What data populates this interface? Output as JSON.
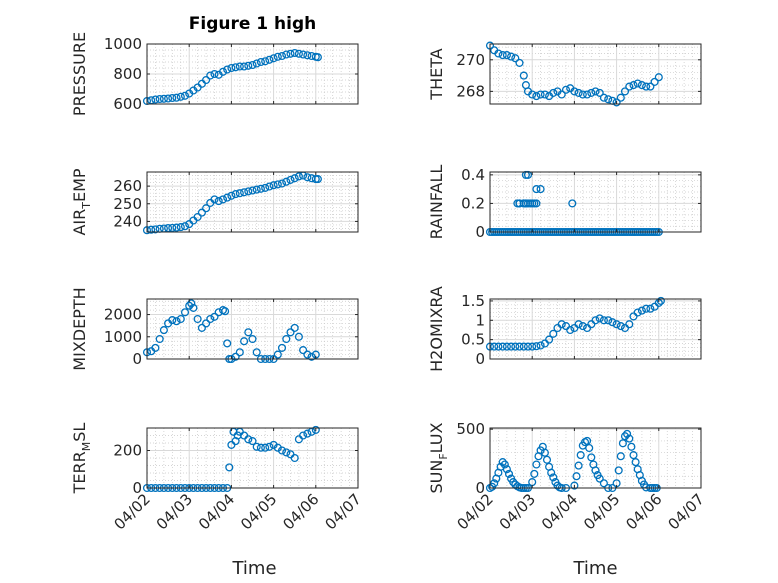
{
  "figure": {
    "title": "Figure 1 high",
    "x_label": "Time",
    "x_ticks": [
      "04/02",
      "04/03",
      "04/04",
      "04/05",
      "04/06",
      "04/07"
    ],
    "marker_color": "#0072BD",
    "axis_color": "#262626"
  },
  "chart_data": [
    {
      "type": "scatter",
      "ylabel": "PRESSURE",
      "yticks": [
        600,
        800,
        1000
      ],
      "ylim": [
        600,
        1000
      ],
      "xlim": [
        0,
        5
      ],
      "grid": true,
      "x": [
        0.0,
        0.1,
        0.2,
        0.3,
        0.4,
        0.5,
        0.6,
        0.7,
        0.8,
        0.9,
        1.0,
        1.1,
        1.2,
        1.3,
        1.4,
        1.5,
        1.6,
        1.7,
        1.8,
        1.9,
        2.0,
        2.1,
        2.2,
        2.3,
        2.4,
        2.5,
        2.6,
        2.7,
        2.8,
        2.9,
        3.0,
        3.1,
        3.2,
        3.3,
        3.4,
        3.5,
        3.6,
        3.7,
        3.8,
        3.9,
        4.0,
        4.05
      ],
      "y": [
        620,
        625,
        630,
        633,
        635,
        637,
        640,
        642,
        648,
        655,
        670,
        690,
        710,
        735,
        760,
        790,
        800,
        795,
        815,
        830,
        840,
        845,
        850,
        850,
        855,
        860,
        870,
        880,
        885,
        895,
        905,
        915,
        920,
        930,
        935,
        940,
        935,
        930,
        925,
        920,
        915,
        912
      ]
    },
    {
      "type": "scatter",
      "ylabel": "THETA",
      "yticks": [
        268,
        270
      ],
      "ylim": [
        267.2,
        271.0
      ],
      "xlim": [
        0,
        5
      ],
      "grid": true,
      "x": [
        0.0,
        0.1,
        0.2,
        0.3,
        0.4,
        0.5,
        0.6,
        0.7,
        0.8,
        0.85,
        0.9,
        1.0,
        1.1,
        1.2,
        1.3,
        1.4,
        1.5,
        1.6,
        1.7,
        1.8,
        1.9,
        2.0,
        2.1,
        2.2,
        2.3,
        2.4,
        2.5,
        2.6,
        2.7,
        2.8,
        2.9,
        3.0,
        3.1,
        3.2,
        3.3,
        3.4,
        3.5,
        3.6,
        3.7,
        3.8,
        3.9,
        4.0
      ],
      "y": [
        270.9,
        270.6,
        270.4,
        270.3,
        270.3,
        270.2,
        270.1,
        269.8,
        269.0,
        268.4,
        268.0,
        267.8,
        267.7,
        267.8,
        267.8,
        267.7,
        267.9,
        268.0,
        267.8,
        268.1,
        268.2,
        268.0,
        267.9,
        267.8,
        267.8,
        267.9,
        268.0,
        267.9,
        267.6,
        267.5,
        267.4,
        267.3,
        267.6,
        268.0,
        268.3,
        268.4,
        268.5,
        268.4,
        268.3,
        268.3,
        268.6,
        268.9
      ]
    },
    {
      "type": "scatter",
      "ylabel": "AIR_TEMP",
      "yticks": [
        240,
        250,
        260
      ],
      "ylim": [
        234,
        268
      ],
      "xlim": [
        0,
        5
      ],
      "grid": true,
      "x": [
        0.0,
        0.1,
        0.2,
        0.3,
        0.4,
        0.5,
        0.6,
        0.7,
        0.8,
        0.9,
        1.0,
        1.1,
        1.2,
        1.3,
        1.4,
        1.5,
        1.6,
        1.7,
        1.8,
        1.9,
        2.0,
        2.1,
        2.2,
        2.3,
        2.4,
        2.5,
        2.6,
        2.7,
        2.8,
        2.9,
        3.0,
        3.1,
        3.2,
        3.3,
        3.4,
        3.5,
        3.6,
        3.7,
        3.8,
        3.9,
        4.0,
        4.05
      ],
      "y": [
        235.0,
        235.3,
        235.5,
        235.8,
        236.0,
        236.2,
        236.3,
        236.5,
        236.8,
        237.3,
        238.5,
        240.5,
        242.5,
        245.0,
        247.5,
        250.5,
        252.5,
        251.5,
        252.5,
        253.5,
        254.5,
        255.5,
        256.0,
        256.5,
        257.0,
        257.5,
        258.0,
        258.5,
        259.0,
        259.8,
        260.5,
        261.0,
        261.5,
        262.5,
        263.5,
        264.5,
        265.5,
        266.0,
        265.0,
        264.5,
        264.0,
        264.0
      ]
    },
    {
      "type": "scatter",
      "ylabel": "RAINFALL",
      "yticks": [
        0,
        0.2,
        0.4
      ],
      "ylim": [
        0,
        0.42
      ],
      "xlim": [
        0,
        5
      ],
      "grid": true,
      "x": [
        0.0,
        0.05,
        0.1,
        0.15,
        0.2,
        0.25,
        0.3,
        0.35,
        0.4,
        0.45,
        0.5,
        0.55,
        0.6,
        0.65,
        0.7,
        0.75,
        0.8,
        0.85,
        0.9,
        0.95,
        1.0,
        1.05,
        1.1,
        1.15,
        1.2,
        1.25,
        1.3,
        1.35,
        1.4,
        1.45,
        1.5,
        1.55,
        1.6,
        1.65,
        1.7,
        1.75,
        1.8,
        1.85,
        1.9,
        1.95,
        2.0,
        2.05,
        2.1,
        2.15,
        2.2,
        2.25,
        2.3,
        2.35,
        2.4,
        2.45,
        2.5,
        2.55,
        2.6,
        2.65,
        2.7,
        2.75,
        2.8,
        2.85,
        2.9,
        2.95,
        3.0,
        3.05,
        3.1,
        3.15,
        3.2,
        3.25,
        3.3,
        3.35,
        3.4,
        3.45,
        3.5,
        3.55,
        3.6,
        3.65,
        3.7,
        3.75,
        3.8,
        3.85,
        3.9,
        3.95,
        4.0,
        0.65,
        0.7,
        0.8,
        0.85,
        0.9,
        0.7,
        0.8,
        0.85,
        0.95,
        1.0,
        1.05,
        1.1,
        0.85,
        0.9,
        1.1,
        1.2,
        1.95
      ],
      "y": [
        0,
        0,
        0,
        0,
        0,
        0,
        0,
        0,
        0,
        0,
        0,
        0,
        0,
        0,
        0,
        0,
        0,
        0,
        0,
        0,
        0,
        0,
        0,
        0,
        0,
        0,
        0,
        0,
        0,
        0,
        0,
        0,
        0,
        0,
        0,
        0,
        0,
        0,
        0,
        0,
        0,
        0,
        0,
        0,
        0,
        0,
        0,
        0,
        0,
        0,
        0,
        0,
        0,
        0,
        0,
        0,
        0,
        0,
        0,
        0,
        0,
        0,
        0,
        0,
        0,
        0,
        0,
        0,
        0,
        0,
        0,
        0,
        0,
        0,
        0,
        0,
        0,
        0,
        0,
        0,
        0,
        0.2,
        0.2,
        0.2,
        0.2,
        0.2,
        0.2,
        0.2,
        0.2,
        0.2,
        0.2,
        0.2,
        0.2,
        0.4,
        0.4,
        0.3,
        0.3,
        0.2
      ]
    },
    {
      "type": "scatter",
      "ylabel": "MIXDEPTH",
      "yticks": [
        0,
        1000,
        2000
      ],
      "ylim": [
        0,
        2700
      ],
      "xlim": [
        0,
        5
      ],
      "grid": true,
      "x": [
        0.0,
        0.1,
        0.2,
        0.3,
        0.4,
        0.5,
        0.6,
        0.7,
        0.8,
        0.9,
        1.0,
        1.05,
        1.1,
        1.2,
        1.3,
        1.4,
        1.5,
        1.6,
        1.7,
        1.8,
        1.85,
        1.9,
        1.95,
        2.0,
        2.1,
        2.2,
        2.3,
        2.4,
        2.5,
        2.6,
        2.7,
        2.8,
        2.9,
        3.0,
        3.1,
        3.2,
        3.3,
        3.4,
        3.5,
        3.6,
        3.7,
        3.8,
        3.9,
        4.0
      ],
      "y": [
        300,
        350,
        500,
        900,
        1300,
        1600,
        1750,
        1700,
        1800,
        2100,
        2400,
        2500,
        2300,
        1800,
        1400,
        1600,
        1800,
        1900,
        2100,
        2200,
        2150,
        700,
        0,
        0,
        100,
        300,
        800,
        1200,
        900,
        300,
        0,
        0,
        0,
        0,
        200,
        500,
        900,
        1200,
        1400,
        1000,
        400,
        200,
        100,
        200
      ]
    },
    {
      "type": "scatter",
      "ylabel": "H2OMIXRA",
      "yticks": [
        0,
        0.5,
        1,
        1.5
      ],
      "ylim": [
        0,
        1.55
      ],
      "xlim": [
        0,
        5
      ],
      "grid": true,
      "x": [
        0.0,
        0.1,
        0.2,
        0.3,
        0.4,
        0.5,
        0.6,
        0.7,
        0.8,
        0.9,
        1.0,
        1.1,
        1.2,
        1.3,
        1.4,
        1.5,
        1.6,
        1.7,
        1.8,
        1.9,
        2.0,
        2.1,
        2.2,
        2.3,
        2.4,
        2.5,
        2.6,
        2.7,
        2.8,
        2.9,
        3.0,
        3.1,
        3.2,
        3.3,
        3.4,
        3.5,
        3.6,
        3.7,
        3.8,
        3.9,
        4.0,
        4.05
      ],
      "y": [
        0.32,
        0.32,
        0.32,
        0.32,
        0.32,
        0.32,
        0.32,
        0.32,
        0.32,
        0.32,
        0.32,
        0.33,
        0.35,
        0.4,
        0.5,
        0.65,
        0.8,
        0.9,
        0.85,
        0.75,
        0.8,
        0.9,
        0.85,
        0.8,
        0.9,
        1.0,
        1.05,
        1.0,
        1.0,
        0.95,
        0.9,
        0.85,
        0.8,
        0.9,
        1.1,
        1.2,
        1.25,
        1.3,
        1.3,
        1.35,
        1.45,
        1.5
      ]
    },
    {
      "type": "scatter",
      "ylabel": "TERR_MSL",
      "yticks": [
        0,
        200
      ],
      "ylim": [
        0,
        320
      ],
      "xlim": [
        0,
        5
      ],
      "grid": true,
      "x": [
        0.0,
        0.1,
        0.2,
        0.3,
        0.4,
        0.5,
        0.6,
        0.7,
        0.8,
        0.9,
        1.0,
        1.1,
        1.2,
        1.3,
        1.4,
        1.5,
        1.6,
        1.7,
        1.8,
        1.9,
        1.95,
        2.0,
        2.05,
        2.1,
        2.15,
        2.2,
        2.3,
        2.4,
        2.5,
        2.6,
        2.7,
        2.8,
        2.9,
        3.0,
        3.1,
        3.2,
        3.3,
        3.4,
        3.5,
        3.6,
        3.7,
        3.8,
        3.9,
        4.0
      ],
      "y": [
        0,
        0,
        0,
        0,
        0,
        0,
        0,
        0,
        0,
        0,
        0,
        0,
        0,
        0,
        0,
        0,
        0,
        0,
        0,
        0,
        110,
        230,
        300,
        250,
        280,
        300,
        280,
        260,
        250,
        220,
        215,
        215,
        220,
        230,
        215,
        200,
        190,
        180,
        160,
        260,
        280,
        290,
        300,
        310
      ]
    },
    {
      "type": "scatter",
      "ylabel": "SUN_FLUX",
      "yticks": [
        0,
        500
      ],
      "ylim": [
        0,
        510
      ],
      "xlim": [
        0,
        5
      ],
      "grid": true,
      "x": [
        0.0,
        0.05,
        0.1,
        0.15,
        0.2,
        0.25,
        0.3,
        0.35,
        0.4,
        0.45,
        0.5,
        0.55,
        0.6,
        0.65,
        0.7,
        0.75,
        0.8,
        0.85,
        0.9,
        1.0,
        1.05,
        1.1,
        1.15,
        1.2,
        1.25,
        1.3,
        1.35,
        1.4,
        1.45,
        1.5,
        1.55,
        1.6,
        1.65,
        1.7,
        1.8,
        2.0,
        2.05,
        2.1,
        2.15,
        2.2,
        2.25,
        2.3,
        2.35,
        2.4,
        2.45,
        2.5,
        2.55,
        2.6,
        2.7,
        2.8,
        2.9,
        3.0,
        3.05,
        3.1,
        3.15,
        3.2,
        3.25,
        3.3,
        3.35,
        3.4,
        3.45,
        3.5,
        3.55,
        3.6,
        3.65,
        3.7,
        3.8,
        3.85,
        3.9,
        3.95
      ],
      "y": [
        0,
        10,
        40,
        80,
        130,
        180,
        220,
        200,
        160,
        120,
        80,
        50,
        30,
        15,
        5,
        0,
        0,
        0,
        0,
        50,
        120,
        200,
        270,
        320,
        350,
        300,
        240,
        180,
        130,
        90,
        50,
        20,
        5,
        0,
        0,
        20,
        100,
        190,
        280,
        360,
        390,
        400,
        340,
        260,
        200,
        150,
        110,
        80,
        40,
        0,
        0,
        40,
        150,
        270,
        380,
        440,
        460,
        420,
        350,
        280,
        220,
        160,
        110,
        60,
        30,
        5,
        0,
        0,
        0,
        0
      ]
    }
  ]
}
